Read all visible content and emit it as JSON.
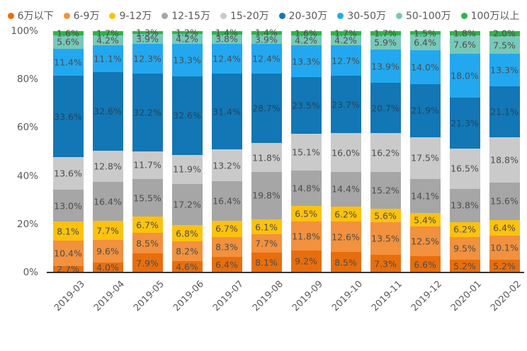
{
  "chart_data": {
    "type": "bar",
    "variant": "stacked-percent-column",
    "title": "",
    "xlabel": "",
    "ylabel": "",
    "ylim": [
      0,
      100
    ],
    "grid": false,
    "legend_position": "top",
    "legend_marker": "circle",
    "y_ticks": [
      {
        "value": 0,
        "label": "0%"
      },
      {
        "value": 20,
        "label": "20%"
      },
      {
        "value": 40,
        "label": "40%"
      },
      {
        "value": 60,
        "label": "60%"
      },
      {
        "value": 80,
        "label": "80%"
      },
      {
        "value": 100,
        "label": "100%"
      }
    ],
    "categories": [
      "2019-03",
      "2019-04",
      "2019-05",
      "2019-06",
      "2019-07",
      "2019-08",
      "2019-09",
      "2019-10",
      "2019-11",
      "2019-12",
      "2020-01",
      "2020-02"
    ],
    "series": [
      {
        "name": "6万以下",
        "color": "#E86E0D",
        "values": [
          2.7,
          4.0,
          7.9,
          4.6,
          6.4,
          8.1,
          9.2,
          8.5,
          7.3,
          6.6,
          5.2,
          5.2
        ]
      },
      {
        "name": "6-9万",
        "color": "#F2913E",
        "values": [
          10.4,
          9.6,
          8.5,
          8.2,
          8.3,
          7.7,
          11.8,
          12.6,
          13.5,
          12.5,
          9.5,
          10.1
        ]
      },
      {
        "name": "9-12万",
        "color": "#FCC20D",
        "values": [
          8.1,
          7.7,
          6.7,
          6.8,
          6.7,
          6.1,
          6.5,
          6.2,
          5.6,
          5.4,
          6.2,
          6.4
        ]
      },
      {
        "name": "12-15万",
        "color": "#A6A6A6",
        "values": [
          13.0,
          16.4,
          15.5,
          17.2,
          16.4,
          19.8,
          14.8,
          14.4,
          15.2,
          14.1,
          13.8,
          15.6
        ]
      },
      {
        "name": "15-20万",
        "color": "#CACACA",
        "values": [
          13.6,
          12.8,
          11.7,
          11.9,
          13.2,
          11.8,
          15.1,
          16.0,
          16.2,
          17.5,
          16.5,
          18.8
        ]
      },
      {
        "name": "20-30万",
        "color": "#1277B4",
        "values": [
          33.6,
          32.6,
          32.2,
          32.6,
          31.4,
          28.7,
          23.5,
          23.7,
          20.7,
          21.9,
          21.3,
          21.1
        ],
        "dark": true
      },
      {
        "name": "30-50万",
        "color": "#23A8EF",
        "values": [
          11.4,
          11.1,
          12.3,
          13.3,
          12.4,
          12.4,
          13.3,
          12.7,
          13.9,
          14.0,
          18.0,
          13.3
        ]
      },
      {
        "name": "50-100万",
        "color": "#77C9B8",
        "values": [
          5.6,
          4.2,
          3.9,
          4.2,
          3.8,
          3.9,
          4.2,
          4.2,
          5.9,
          6.4,
          7.6,
          7.5
        ]
      },
      {
        "name": "100万以上",
        "color": "#33B14C",
        "values": [
          1.6,
          1.7,
          1.3,
          1.2,
          1.4,
          1.4,
          1.6,
          1.7,
          1.7,
          1.5,
          1.8,
          2.0
        ]
      }
    ],
    "label_suffix": "%",
    "colors": {
      "axis_text": "#595959",
      "bar_label": "#4d4d4d",
      "baseline": "#333333"
    }
  }
}
